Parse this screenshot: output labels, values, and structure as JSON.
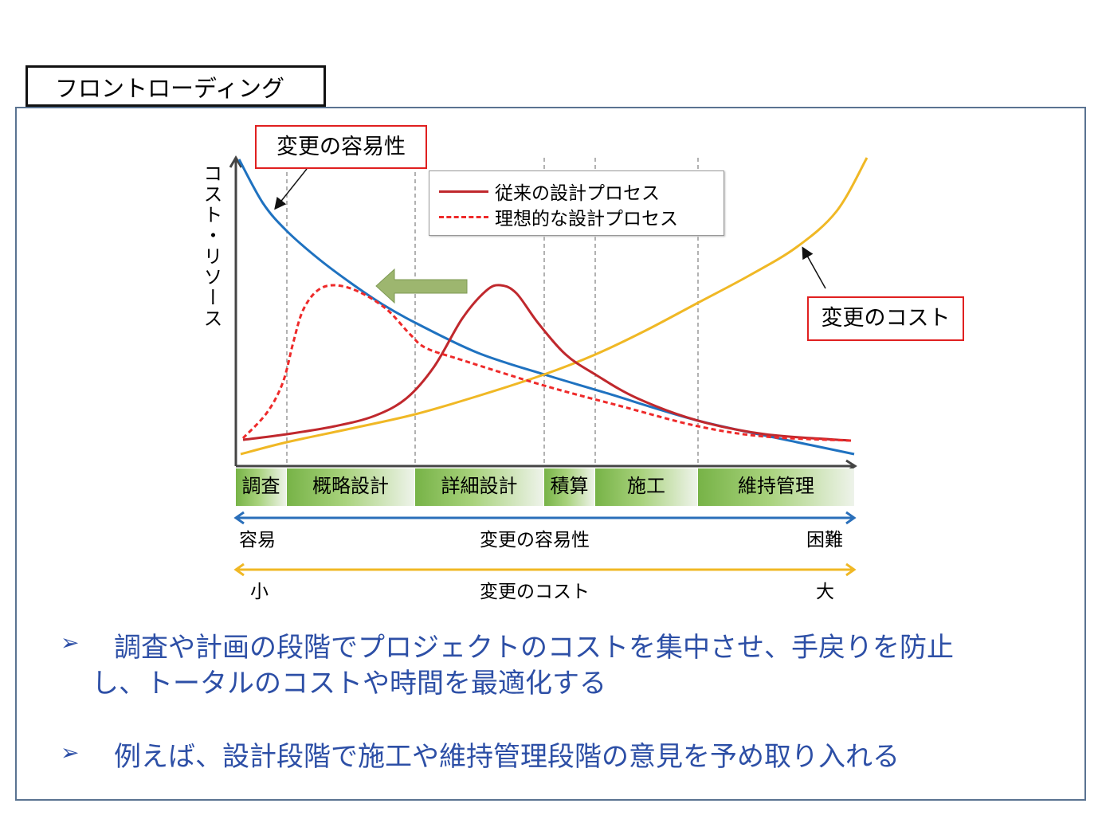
{
  "title": "フロントローディング",
  "y_axis_label": "コスト・リソース",
  "callouts": {
    "ease": "変更の容易性",
    "cost": "変更のコスト"
  },
  "legend": [
    {
      "label": "従来の設計プロセス",
      "color": "#c0282d",
      "style": "solid"
    },
    {
      "label": "理想的な設計プロセス",
      "color": "#ee2a2a",
      "style": "dashed"
    }
  ],
  "phases": [
    "調査",
    "概略設計",
    "詳細設計",
    "積算",
    "施工",
    "維持管理"
  ],
  "ease_scale": {
    "left": "容易",
    "center": "変更の容易性",
    "right": "困難",
    "color": "#2a6fba"
  },
  "cost_scale": {
    "left": "小",
    "center": "変更のコスト",
    "right": "大",
    "color": "#f0b825"
  },
  "curve_colors": {
    "ease": "#1f72c0",
    "cost": "#f0b825",
    "conventional": "#c0282d",
    "ideal": "#ee2a2a",
    "shift_arrow": "#9db66f"
  },
  "bullets": [
    {
      "mark": "➢",
      "line1": "調査や計画の段階でプロジェクトのコストを集中させ、手戻りを防止",
      "line2": "し、トータルのコストや時間を最適化する"
    },
    {
      "mark": "➢",
      "line1": "例えば、設計段階で施工や維持管理段階の意見を予め取り入れる"
    }
  ]
}
